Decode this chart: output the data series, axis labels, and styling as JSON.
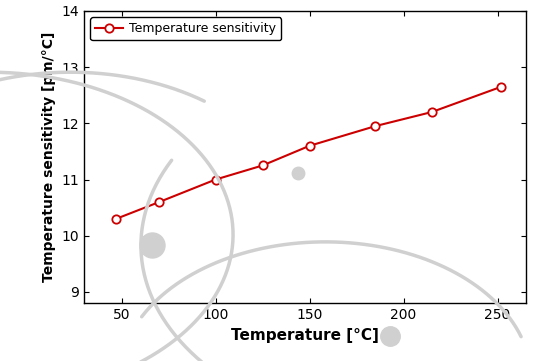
{
  "x": [
    47,
    70,
    100,
    125,
    150,
    185,
    215,
    252
  ],
  "y": [
    10.3,
    10.6,
    11.0,
    11.25,
    11.6,
    11.95,
    12.2,
    12.65
  ],
  "line_color": "#cc0000",
  "marker": "o",
  "marker_facecolor": "white",
  "marker_edgecolor": "#cc0000",
  "marker_size": 6,
  "line_width": 1.5,
  "legend_label": "Temperature sensitivity",
  "xlabel": "Temperature [°C]",
  "ylabel": "Temperature sensitivity [pm/°C]",
  "xlim": [
    30,
    265
  ],
  "ylim": [
    8.8,
    14
  ],
  "xticks": [
    50,
    100,
    150,
    200,
    250
  ],
  "yticks": [
    9,
    10,
    11,
    12,
    13,
    14
  ],
  "background_color": "#ffffff",
  "watermark_color": "#d0d0d0"
}
